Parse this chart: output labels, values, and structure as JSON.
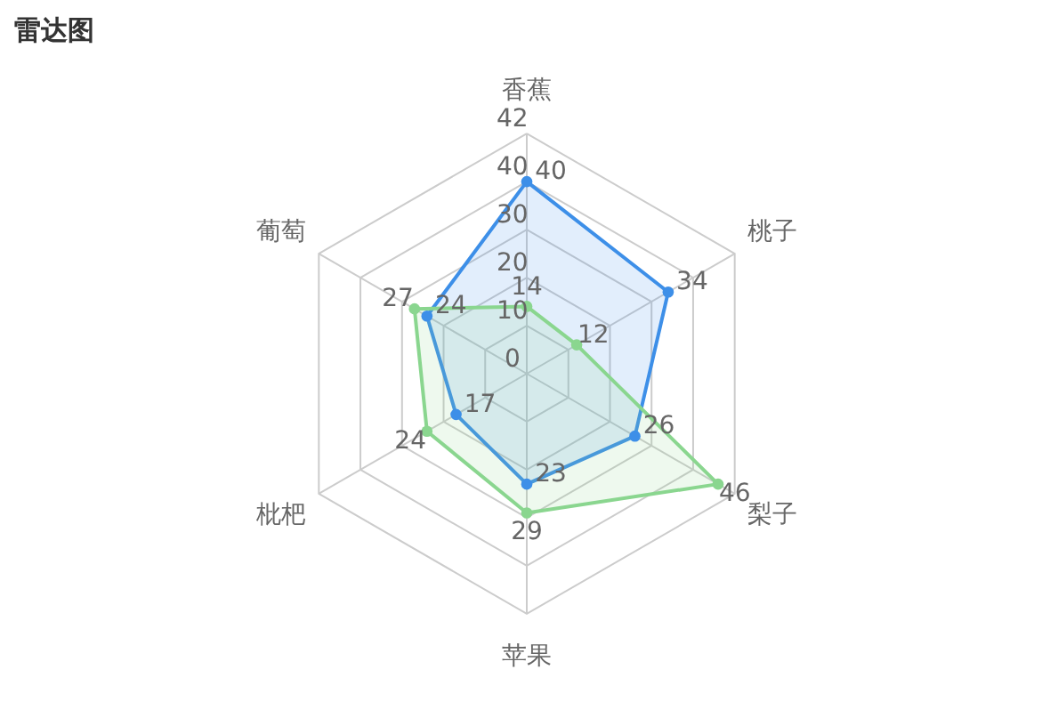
{
  "chart_data": {
    "type": "radar",
    "title": "雷达图",
    "categories": [
      "香蕉",
      "桃子",
      "梨子",
      "苹果",
      "枇杷",
      "葡萄"
    ],
    "series": [
      {
        "color": "#3d8fe8",
        "values": [
          40,
          34,
          26,
          23,
          17,
          24
        ]
      },
      {
        "color": "#8ad68f",
        "values": [
          14,
          12,
          46,
          29,
          24,
          27
        ]
      }
    ],
    "ylim": [
      0,
      50
    ],
    "yticks": [
      0,
      10,
      20,
      30,
      40
    ],
    "annotations": [
      "42"
    ],
    "grid": true,
    "data_labels": true,
    "marker": "circle",
    "legend": false
  }
}
